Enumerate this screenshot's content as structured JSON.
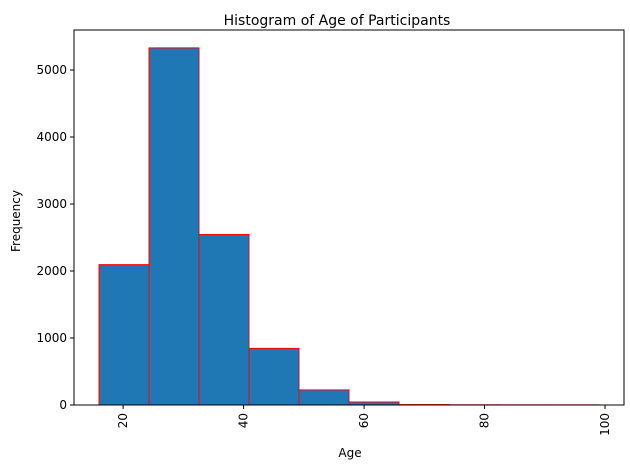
{
  "chart_data": {
    "type": "bar",
    "title": "Histogram of Age of Participants",
    "xlabel": "Age",
    "ylabel": "Frequency",
    "bins": [
      {
        "start": 16.0,
        "end": 24.3,
        "value": 2095
      },
      {
        "start": 24.3,
        "end": 32.6,
        "value": 5330
      },
      {
        "start": 32.6,
        "end": 40.9,
        "value": 2545
      },
      {
        "start": 40.9,
        "end": 49.2,
        "value": 845
      },
      {
        "start": 49.2,
        "end": 57.5,
        "value": 225
      },
      {
        "start": 57.5,
        "end": 65.8,
        "value": 45
      },
      {
        "start": 65.8,
        "end": 74.1,
        "value": 6
      },
      {
        "start": 74.1,
        "end": 82.4,
        "value": 3
      },
      {
        "start": 82.4,
        "end": 90.7,
        "value": 2
      },
      {
        "start": 90.7,
        "end": 99.0,
        "value": 2
      }
    ],
    "xlim": [
      11.85,
      103.15
    ],
    "ylim": [
      0,
      5597
    ],
    "xticks": [
      20,
      40,
      60,
      80,
      100
    ],
    "yticks": [
      0,
      1000,
      2000,
      3000,
      4000,
      5000
    ],
    "xtick_rotation": 90,
    "bar_fill": "#1f77b4",
    "bar_edge": "#ff0000",
    "grid": false,
    "legend": "none"
  }
}
